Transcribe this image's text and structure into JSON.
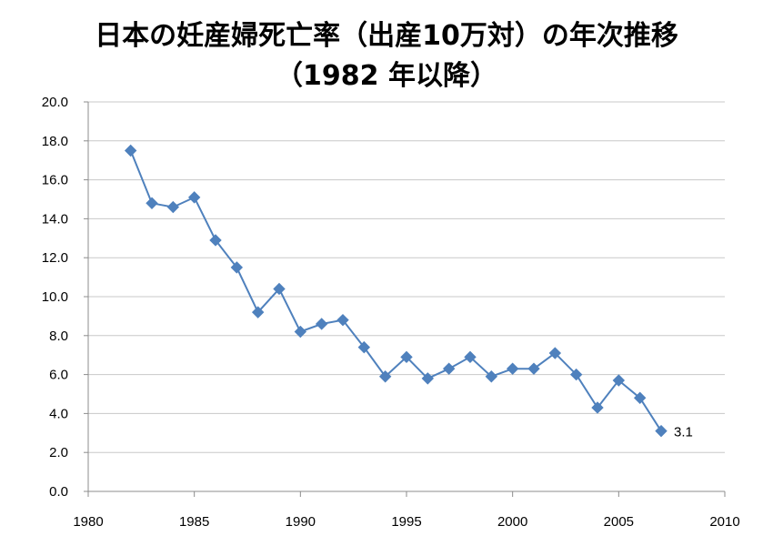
{
  "chart_data": {
    "type": "line",
    "title_lines": [
      "日本の妊産婦死亡率（出産10万対）の年次推移",
      "（1982 年以降）"
    ],
    "xlabel": "",
    "ylabel": "",
    "xlim": [
      1980,
      2010
    ],
    "ylim": [
      0,
      20
    ],
    "x_ticks": [
      "1980",
      "1985",
      "1990",
      "1995",
      "2000",
      "2005",
      "2010"
    ],
    "y_ticks": [
      "0.0",
      "2.0",
      "4.0",
      "6.0",
      "8.0",
      "10.0",
      "12.0",
      "14.0",
      "16.0",
      "18.0",
      "20.0"
    ],
    "grid": true,
    "legend": "none",
    "series": [
      {
        "color": "#4f81bd",
        "marker": "diamond",
        "x": [
          1982,
          1983,
          1984,
          1985,
          1986,
          1987,
          1988,
          1989,
          1990,
          1991,
          1992,
          1993,
          1994,
          1995,
          1996,
          1997,
          1998,
          1999,
          2000,
          2001,
          2002,
          2003,
          2004,
          2005,
          2006,
          2007
        ],
        "y": [
          17.5,
          14.8,
          14.6,
          15.1,
          12.9,
          11.5,
          9.2,
          10.4,
          8.2,
          8.6,
          8.8,
          7.4,
          5.9,
          6.9,
          5.8,
          6.3,
          6.9,
          5.9,
          6.3,
          6.3,
          7.1,
          6.0,
          4.3,
          5.7,
          4.8,
          3.1
        ]
      }
    ],
    "annotations": [
      {
        "text": "3.1",
        "x": 2007,
        "y": 3.1
      }
    ]
  }
}
